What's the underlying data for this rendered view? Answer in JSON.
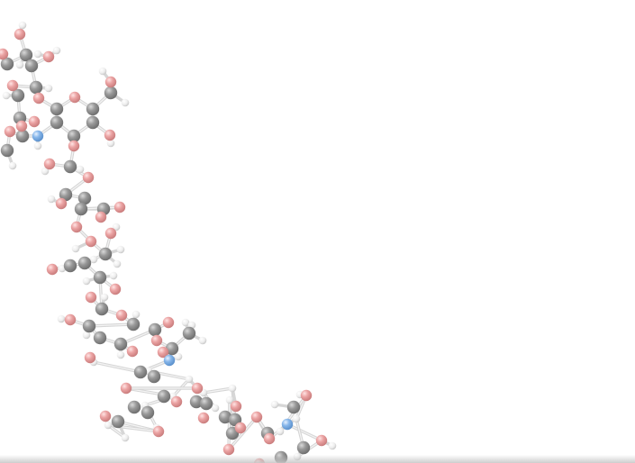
{
  "scene": {
    "title": "",
    "colors": {
      "background": "#ffffff",
      "carbon": "#8c8c8c",
      "oxygen": "#e99a9a",
      "nitrogen": "#7fb2e8",
      "hydrogen": "#f2f2f2",
      "bond": "#d6d6d6"
    }
  }
}
